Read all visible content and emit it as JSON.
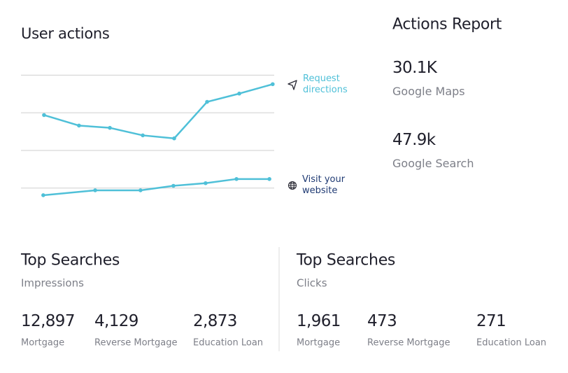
{
  "chart_data": {
    "type": "line",
    "title": "User actions",
    "xlim": [
      0,
      100
    ],
    "ylim": [
      -0.6,
      3.1
    ],
    "yticks": [
      0,
      1,
      2,
      3
    ],
    "grid": true,
    "series": [
      {
        "name": "Request directions",
        "color": "#4fc0d8",
        "x": [
          9.1,
          22.9,
          35.1,
          48.1,
          60.5,
          73.5,
          86.2,
          99.4
        ],
        "values": [
          1.94,
          1.66,
          1.6,
          1.4,
          1.32,
          2.29,
          2.51,
          2.76
        ]
      },
      {
        "name": "Visit your website",
        "color": "#4fc0d8",
        "x": [
          8.8,
          29.3,
          47.2,
          60.2,
          72.9,
          85.1,
          98.1
        ],
        "values": [
          -0.19,
          -0.06,
          -0.06,
          0.06,
          0.13,
          0.24,
          0.24
        ]
      }
    ]
  },
  "actions_report": {
    "title": "Actions Report",
    "items": [
      {
        "value": "30.1K",
        "label": "Google Maps"
      },
      {
        "value": "47.9k",
        "label": "Google Search"
      }
    ]
  },
  "top_searches": [
    {
      "title": "Top Searches",
      "subtitle": "Impressions",
      "items": [
        {
          "value": "12,897",
          "label": "Mortgage"
        },
        {
          "value": "4,129",
          "label": "Reverse Mortgage"
        },
        {
          "value": "2,873",
          "label": "Education Loan"
        }
      ]
    },
    {
      "title": "Top Searches",
      "subtitle": "Clicks",
      "items": [
        {
          "value": "1,961",
          "label": "Mortgage"
        },
        {
          "value": "473",
          "label": "Reverse Mortgage"
        },
        {
          "value": "271",
          "label": "Education Loan"
        }
      ]
    }
  ]
}
